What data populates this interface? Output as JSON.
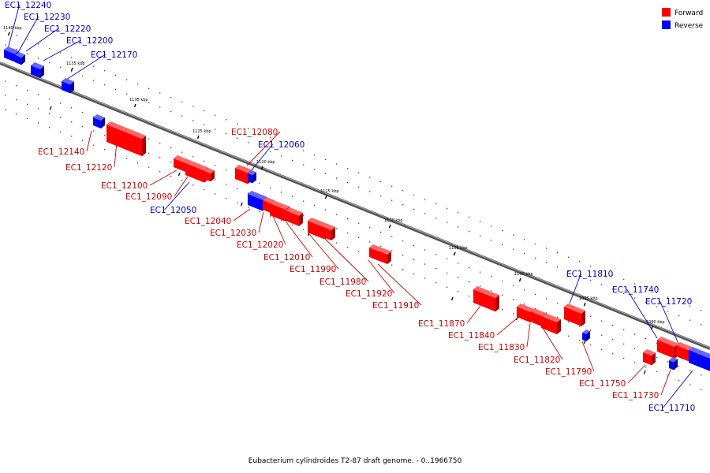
{
  "legend": [
    {
      "label": "Forward",
      "color": "#ff0000"
    },
    {
      "label": "Reverse",
      "color": "#0000ff"
    }
  ],
  "caption": "Eubacterium cylindroides T2-87 draft genome. - 0..1966750",
  "ticks": [
    "1140 kbp",
    "1135 kbp",
    "1130 kbp",
    "1125 kbp",
    "1120 kbp",
    "1115 kbp",
    "1110 kbp",
    "1105 kbp",
    "1100 kbp",
    "1095 kbp",
    "1090 kbp"
  ],
  "genes": [
    {
      "name": "EC1_12240",
      "strand": "reverse"
    },
    {
      "name": "EC1_12230",
      "strand": "reverse"
    },
    {
      "name": "EC1_12220",
      "strand": "reverse"
    },
    {
      "name": "EC1_12200",
      "strand": "reverse"
    },
    {
      "name": "EC1_12170",
      "strand": "reverse"
    },
    {
      "name": "EC1_12140",
      "strand": "forward"
    },
    {
      "name": "EC1_12120",
      "strand": "forward"
    },
    {
      "name": "EC1_12100",
      "strand": "forward"
    },
    {
      "name": "EC1_12090",
      "strand": "forward"
    },
    {
      "name": "EC1_12080",
      "strand": "forward"
    },
    {
      "name": "EC1_12060",
      "strand": "reverse"
    },
    {
      "name": "EC1_12050",
      "strand": "reverse"
    },
    {
      "name": "EC1_12040",
      "strand": "forward"
    },
    {
      "name": "EC1_12030",
      "strand": "forward"
    },
    {
      "name": "EC1_12020",
      "strand": "forward"
    },
    {
      "name": "EC1_12010",
      "strand": "forward"
    },
    {
      "name": "EC1_11990",
      "strand": "forward"
    },
    {
      "name": "EC1_11980",
      "strand": "forward"
    },
    {
      "name": "EC1_11920",
      "strand": "forward"
    },
    {
      "name": "EC1_11910",
      "strand": "forward"
    },
    {
      "name": "EC1_11870",
      "strand": "forward"
    },
    {
      "name": "EC1_11840",
      "strand": "forward"
    },
    {
      "name": "EC1_11830",
      "strand": "forward"
    },
    {
      "name": "EC1_11820",
      "strand": "forward"
    },
    {
      "name": "EC1_11810",
      "strand": "reverse"
    },
    {
      "name": "EC1_11790",
      "strand": "forward"
    },
    {
      "name": "EC1_11750",
      "strand": "forward"
    },
    {
      "name": "EC1_11740",
      "strand": "reverse"
    },
    {
      "name": "EC1_11730",
      "strand": "forward"
    },
    {
      "name": "EC1_11720",
      "strand": "reverse"
    },
    {
      "name": "EC1_11710",
      "strand": "reverse"
    }
  ]
}
